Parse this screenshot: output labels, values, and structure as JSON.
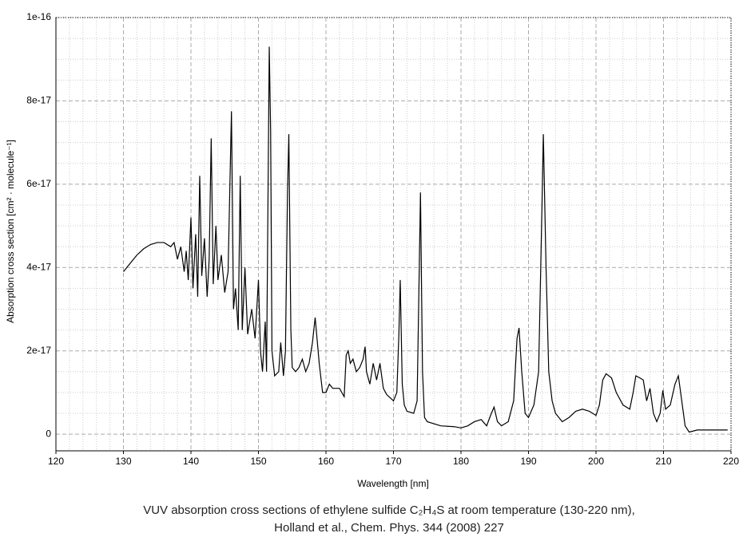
{
  "chart_data": {
    "type": "line",
    "xlabel": "Wavelength [nm]",
    "ylabel": "Absorption cross section [cm² · molecule⁻¹]",
    "annotations": [
      "VUV absorption cross sections of ethylene sulfide C₂H₄S at room temperature (130-220 nm),",
      "Holland et al., Chem. Phys. 344 (2008) 227"
    ],
    "xlim": [
      120,
      220
    ],
    "xticks": [
      120,
      130,
      140,
      150,
      160,
      170,
      180,
      190,
      200,
      210,
      220
    ],
    "ylim": [
      -4e-18,
      1e-16
    ],
    "yticks": [
      0,
      2e-17,
      4e-17,
      6e-17,
      8e-17,
      1e-16
    ],
    "grid": true,
    "series": [
      {
        "color": "#000000",
        "x": [
          130,
          131,
          132,
          133,
          134,
          135,
          136,
          137,
          137.5,
          138,
          138.5,
          139,
          139.3,
          139.6,
          140,
          140.3,
          140.7,
          141,
          141.3,
          141.6,
          142,
          142.4,
          142.7,
          143,
          143.3,
          143.7,
          144,
          144.5,
          145,
          145.5,
          146,
          146.3,
          146.6,
          147,
          147.3,
          147.6,
          148,
          148.4,
          149,
          149.5,
          150,
          150.3,
          150.6,
          151,
          151.2,
          151.6,
          151.8,
          152,
          152.4,
          153,
          153.3,
          153.7,
          154,
          154.3,
          154.5,
          154.8,
          155,
          155.5,
          156,
          156.5,
          157,
          157.5,
          158,
          158.4,
          159,
          159.5,
          160,
          160.5,
          161,
          162,
          162.7,
          163,
          163.3,
          163.6,
          164,
          164.5,
          165,
          165.5,
          165.8,
          166,
          166.5,
          167,
          167.5,
          168,
          168.5,
          169,
          170,
          170.5,
          170.8,
          171,
          171.3,
          171.6,
          172,
          173,
          173.5,
          174,
          174.3,
          174.6,
          175,
          177,
          179,
          180,
          181,
          182,
          183,
          183.8,
          184.5,
          184.9,
          185.4,
          186,
          187,
          187.8,
          188.3,
          188.6,
          189,
          189.5,
          190,
          190.8,
          191.5,
          192,
          192.2,
          192.6,
          193,
          193.5,
          194,
          195,
          196,
          197,
          198,
          199,
          200,
          200.5,
          201,
          201.5,
          202.3,
          203,
          204,
          205,
          205.5,
          205.9,
          206.5,
          207,
          207.5,
          208,
          208.5,
          209,
          209.5,
          209.9,
          210.3,
          211,
          211.7,
          212.2,
          212.7,
          213.2,
          213.8,
          215,
          217,
          219.5
        ],
        "values": [
          3.9e-17,
          4.1e-17,
          4.3e-17,
          4.45e-17,
          4.55e-17,
          4.6e-17,
          4.6e-17,
          4.5e-17,
          4.6e-17,
          4.2e-17,
          4.5e-17,
          3.9e-17,
          4.4e-17,
          3.7e-17,
          5.2e-17,
          3.5e-17,
          4.8e-17,
          3.3e-17,
          6.2e-17,
          3.8e-17,
          4.7e-17,
          3.3e-17,
          4.2e-17,
          7.1e-17,
          3.6e-17,
          5e-17,
          3.7e-17,
          4.3e-17,
          3.4e-17,
          3.9e-17,
          7.75e-17,
          3e-17,
          3.5e-17,
          2.5e-17,
          6.2e-17,
          2.5e-17,
          4e-17,
          2.4e-17,
          3e-17,
          2.3e-17,
          3.7e-17,
          2e-17,
          1.5e-17,
          2.7e-17,
          1.5e-17,
          9.3e-17,
          7.3e-17,
          2e-17,
          1.4e-17,
          1.5e-17,
          2.2e-17,
          1.4e-17,
          2e-17,
          5.8e-17,
          7.2e-17,
          2.5e-17,
          1.6e-17,
          1.5e-17,
          1.6e-17,
          1.8e-17,
          1.5e-17,
          1.7e-17,
          2.2e-17,
          2.8e-17,
          1.7e-17,
          1e-17,
          1e-17,
          1.2e-17,
          1.1e-17,
          1.1e-17,
          9e-18,
          1.9e-17,
          2e-17,
          1.7e-17,
          1.8e-17,
          1.5e-17,
          1.6e-17,
          1.8e-17,
          2.1e-17,
          1.5e-17,
          1.2e-17,
          1.7e-17,
          1.3e-17,
          1.7e-17,
          1.1e-17,
          9.5e-18,
          8e-18,
          1e-17,
          2.4e-17,
          3.7e-17,
          1.2e-17,
          7e-18,
          5.5e-18,
          5e-18,
          8e-18,
          5.8e-17,
          1.5e-17,
          4e-18,
          3e-18,
          2e-18,
          1.8e-18,
          1.5e-18,
          2e-18,
          3e-18,
          3.5e-18,
          2e-18,
          5e-18,
          6.5e-18,
          3e-18,
          2e-18,
          3e-18,
          8e-18,
          2.3e-17,
          2.55e-17,
          1.5e-17,
          5e-18,
          4e-18,
          7e-18,
          1.5e-17,
          5.5e-17,
          7.2e-17,
          4e-17,
          1.5e-17,
          8e-18,
          5e-18,
          3e-18,
          4e-18,
          5.5e-18,
          6e-18,
          5.5e-18,
          4.5e-18,
          7e-18,
          1.3e-17,
          1.45e-17,
          1.35e-17,
          1e-17,
          7e-18,
          6e-18,
          1e-17,
          1.4e-17,
          1.35e-17,
          1.3e-17,
          8e-18,
          1.1e-17,
          5e-18,
          3e-18,
          5e-18,
          1.05e-17,
          6e-18,
          7e-18,
          1.2e-17,
          1.4e-17,
          8e-18,
          2e-18,
          5e-19,
          1e-18,
          1e-18,
          1e-18
        ]
      }
    ]
  }
}
